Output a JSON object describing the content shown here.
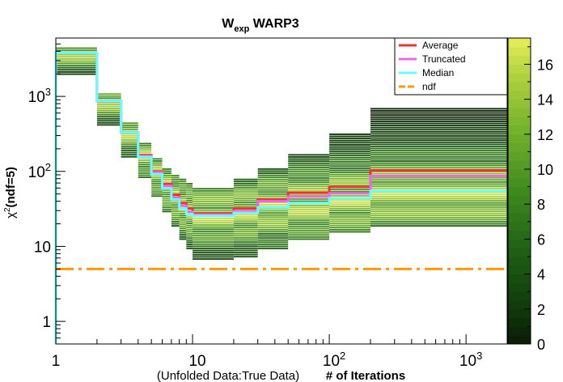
{
  "chart_data": {
    "type": "heatmap",
    "title_main": "W",
    "title_sub": "exp",
    "title_rest": " WARP3",
    "ylabel_main": "χ",
    "ylabel_sup": "2",
    "ylabel_rest": "(ndf=5)",
    "xlabel_paren": "(Unfolded Data:True Data)",
    "xlabel_main": "# of Iterations",
    "x_scale": "log",
    "y_scale": "log",
    "xlim": [
      1,
      2000
    ],
    "ylim": [
      0.5,
      6000
    ],
    "x_tick_labels": [
      "1",
      "10",
      "10^2",
      "10^3"
    ],
    "y_tick_labels": [
      "1",
      "10",
      "10^2",
      "10^3"
    ],
    "colorbar": {
      "zlim": [
        0,
        17.5
      ],
      "tick_labels": [
        "0",
        "2",
        "4",
        "6",
        "8",
        "10",
        "12",
        "14",
        "16"
      ]
    },
    "legend": {
      "placement": "top-right"
    },
    "iteration_bins": [
      1,
      2,
      3,
      4,
      5,
      6,
      7,
      8,
      9,
      10,
      20,
      30,
      50,
      100,
      200,
      2000
    ],
    "series": [
      {
        "name": "Average",
        "color": "#ee3333",
        "style": "solid",
        "values": [
          3800,
          870,
          330,
          165,
          100,
          68,
          49,
          38,
          32,
          27.5,
          32,
          42,
          52,
          62,
          103
        ]
      },
      {
        "name": "Truncated",
        "color": "#ee66ee",
        "style": "solid",
        "values": [
          3800,
          870,
          330,
          160,
          97,
          64,
          45,
          35,
          29,
          26.5,
          29.5,
          40,
          46,
          51,
          87
        ]
      },
      {
        "name": "Median",
        "color": "#66ffff",
        "style": "solid",
        "values": [
          3800,
          870,
          330,
          155,
          92,
          59,
          42,
          32,
          27,
          25.5,
          28,
          33,
          38,
          44,
          55
        ]
      },
      {
        "name": "ndf",
        "color": "#ff9900",
        "style": "dash-dot",
        "values": [
          5,
          5,
          5,
          5,
          5,
          5,
          5,
          5,
          5,
          5,
          5,
          5,
          5,
          5,
          5
        ]
      }
    ],
    "heatmap_bands": [
      {
        "x0": 1,
        "x1": 2,
        "ylo": 1900,
        "yhi": 4500,
        "peak": 3800
      },
      {
        "x0": 2,
        "x1": 3,
        "ylo": 400,
        "yhi": 1100,
        "peak": 870
      },
      {
        "x0": 3,
        "x1": 4,
        "ylo": 150,
        "yhi": 450,
        "peak": 330
      },
      {
        "x0": 4,
        "x1": 5,
        "ylo": 80,
        "yhi": 240,
        "peak": 160
      },
      {
        "x0": 5,
        "x1": 6,
        "ylo": 45,
        "yhi": 150,
        "peak": 95
      },
      {
        "x0": 6,
        "x1": 7,
        "ylo": 28,
        "yhi": 110,
        "peak": 62
      },
      {
        "x0": 7,
        "x1": 8,
        "ylo": 18,
        "yhi": 90,
        "peak": 44
      },
      {
        "x0": 8,
        "x1": 9,
        "ylo": 12,
        "yhi": 80,
        "peak": 34
      },
      {
        "x0": 9,
        "x1": 10,
        "ylo": 9,
        "yhi": 70,
        "peak": 29
      },
      {
        "x0": 10,
        "x1": 20,
        "ylo": 6.5,
        "yhi": 60,
        "peak": 26
      },
      {
        "x0": 20,
        "x1": 30,
        "ylo": 7,
        "yhi": 80,
        "peak": 28
      },
      {
        "x0": 30,
        "x1": 50,
        "ylo": 9,
        "yhi": 110,
        "peak": 33
      },
      {
        "x0": 50,
        "x1": 100,
        "ylo": 12,
        "yhi": 170,
        "peak": 37
      },
      {
        "x0": 100,
        "x1": 200,
        "ylo": 15,
        "yhi": 320,
        "peak": 42
      },
      {
        "x0": 200,
        "x1": 2000,
        "ylo": 18,
        "yhi": 700,
        "peak": 50
      }
    ]
  }
}
